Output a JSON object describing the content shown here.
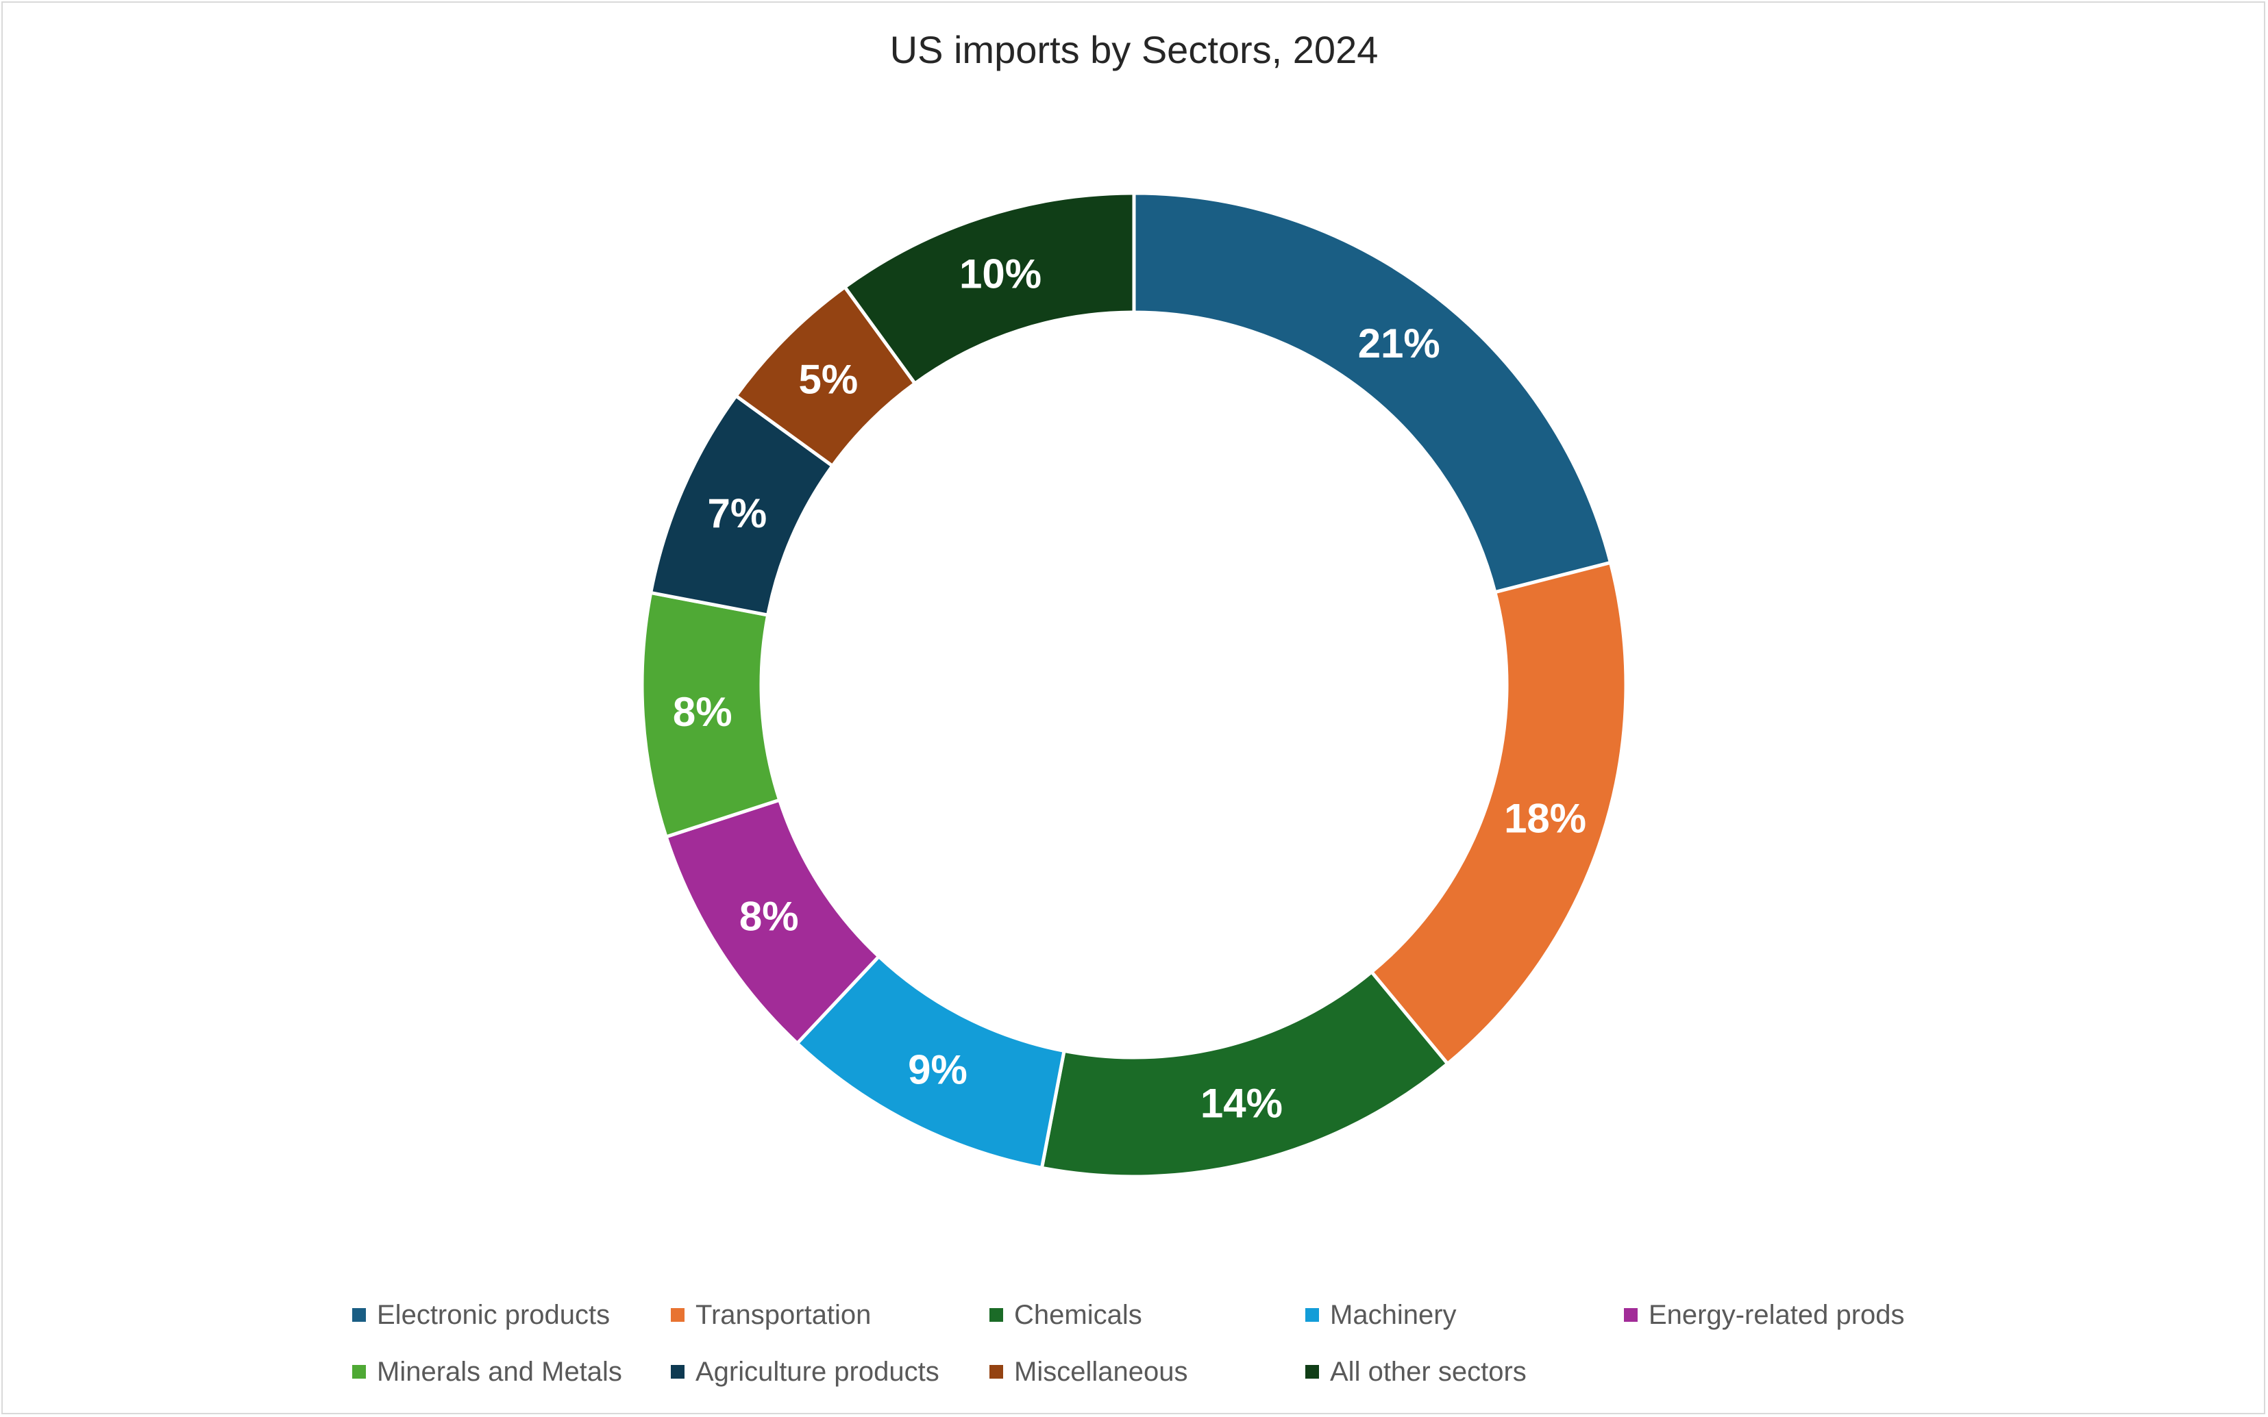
{
  "chart_data": {
    "type": "pie",
    "variant": "doughnut",
    "title": "US imports by Sectors, 2024",
    "legend_position": "bottom",
    "slices": [
      {
        "name": "Electronic products",
        "value": 21,
        "label": "21%",
        "color": "#1a5e84"
      },
      {
        "name": "Transportation",
        "value": 18,
        "label": "18%",
        "color": "#e87331"
      },
      {
        "name": "Chemicals",
        "value": 14,
        "label": "14%",
        "color": "#1b6b27"
      },
      {
        "name": "Machinery",
        "value": 9,
        "label": "9%",
        "color": "#139dd8"
      },
      {
        "name": "Energy-related prods",
        "value": 8,
        "label": "8%",
        "color": "#a22c98"
      },
      {
        "name": "Minerals and Metals",
        "value": 8,
        "label": "8%",
        "color": "#4fa935"
      },
      {
        "name": "Agriculture products",
        "value": 7,
        "label": "7%",
        "color": "#0e3a52"
      },
      {
        "name": "Miscellaneous",
        "value": 5,
        "label": "5%",
        "color": "#944312"
      },
      {
        "name": "All other sectors",
        "value": 10,
        "label": "10%",
        "color": "#103e17"
      }
    ]
  }
}
